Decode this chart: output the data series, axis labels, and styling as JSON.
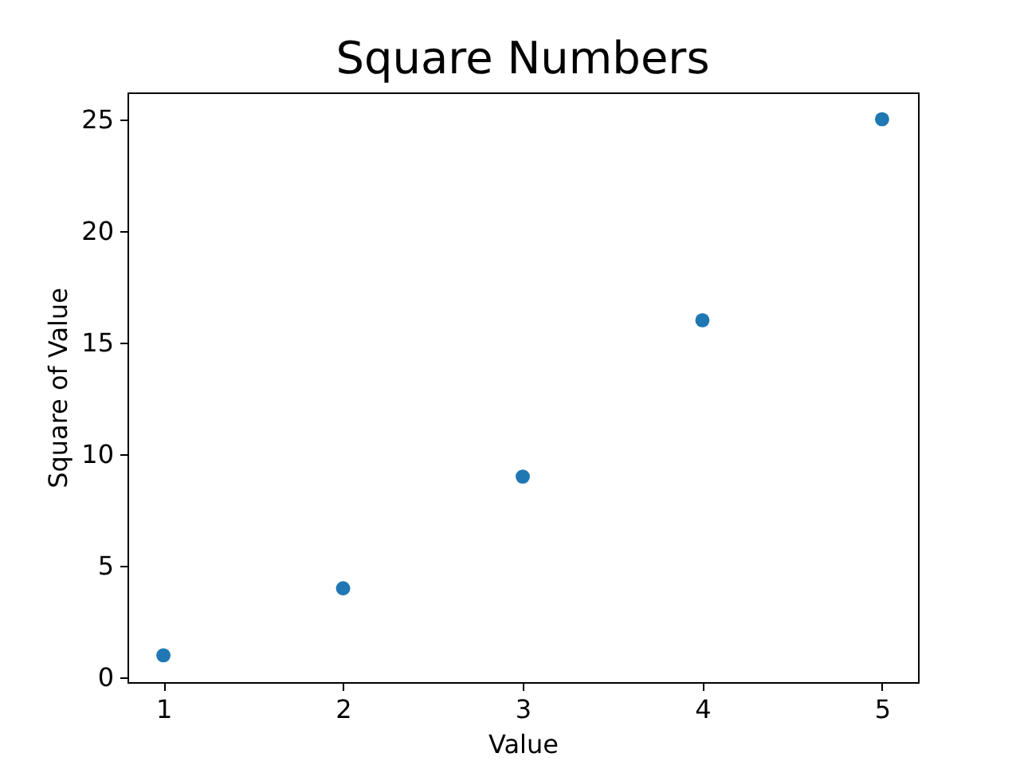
{
  "chart_data": {
    "type": "scatter",
    "title": "Square Numbers",
    "xlabel": "Value",
    "ylabel": "Square of Value",
    "x": [
      1,
      2,
      3,
      4,
      5
    ],
    "series": [
      {
        "color": "#1f77b4",
        "values": [
          1,
          4,
          9,
          16,
          25
        ]
      }
    ],
    "xlim": [
      0.8,
      5.2
    ],
    "xticks": [
      1,
      2,
      3,
      4,
      5
    ],
    "ylim": [
      -0.2,
      26.2
    ],
    "yticks": [
      0,
      5,
      10,
      15,
      20,
      25
    ],
    "grid": false,
    "marker": "circle"
  }
}
